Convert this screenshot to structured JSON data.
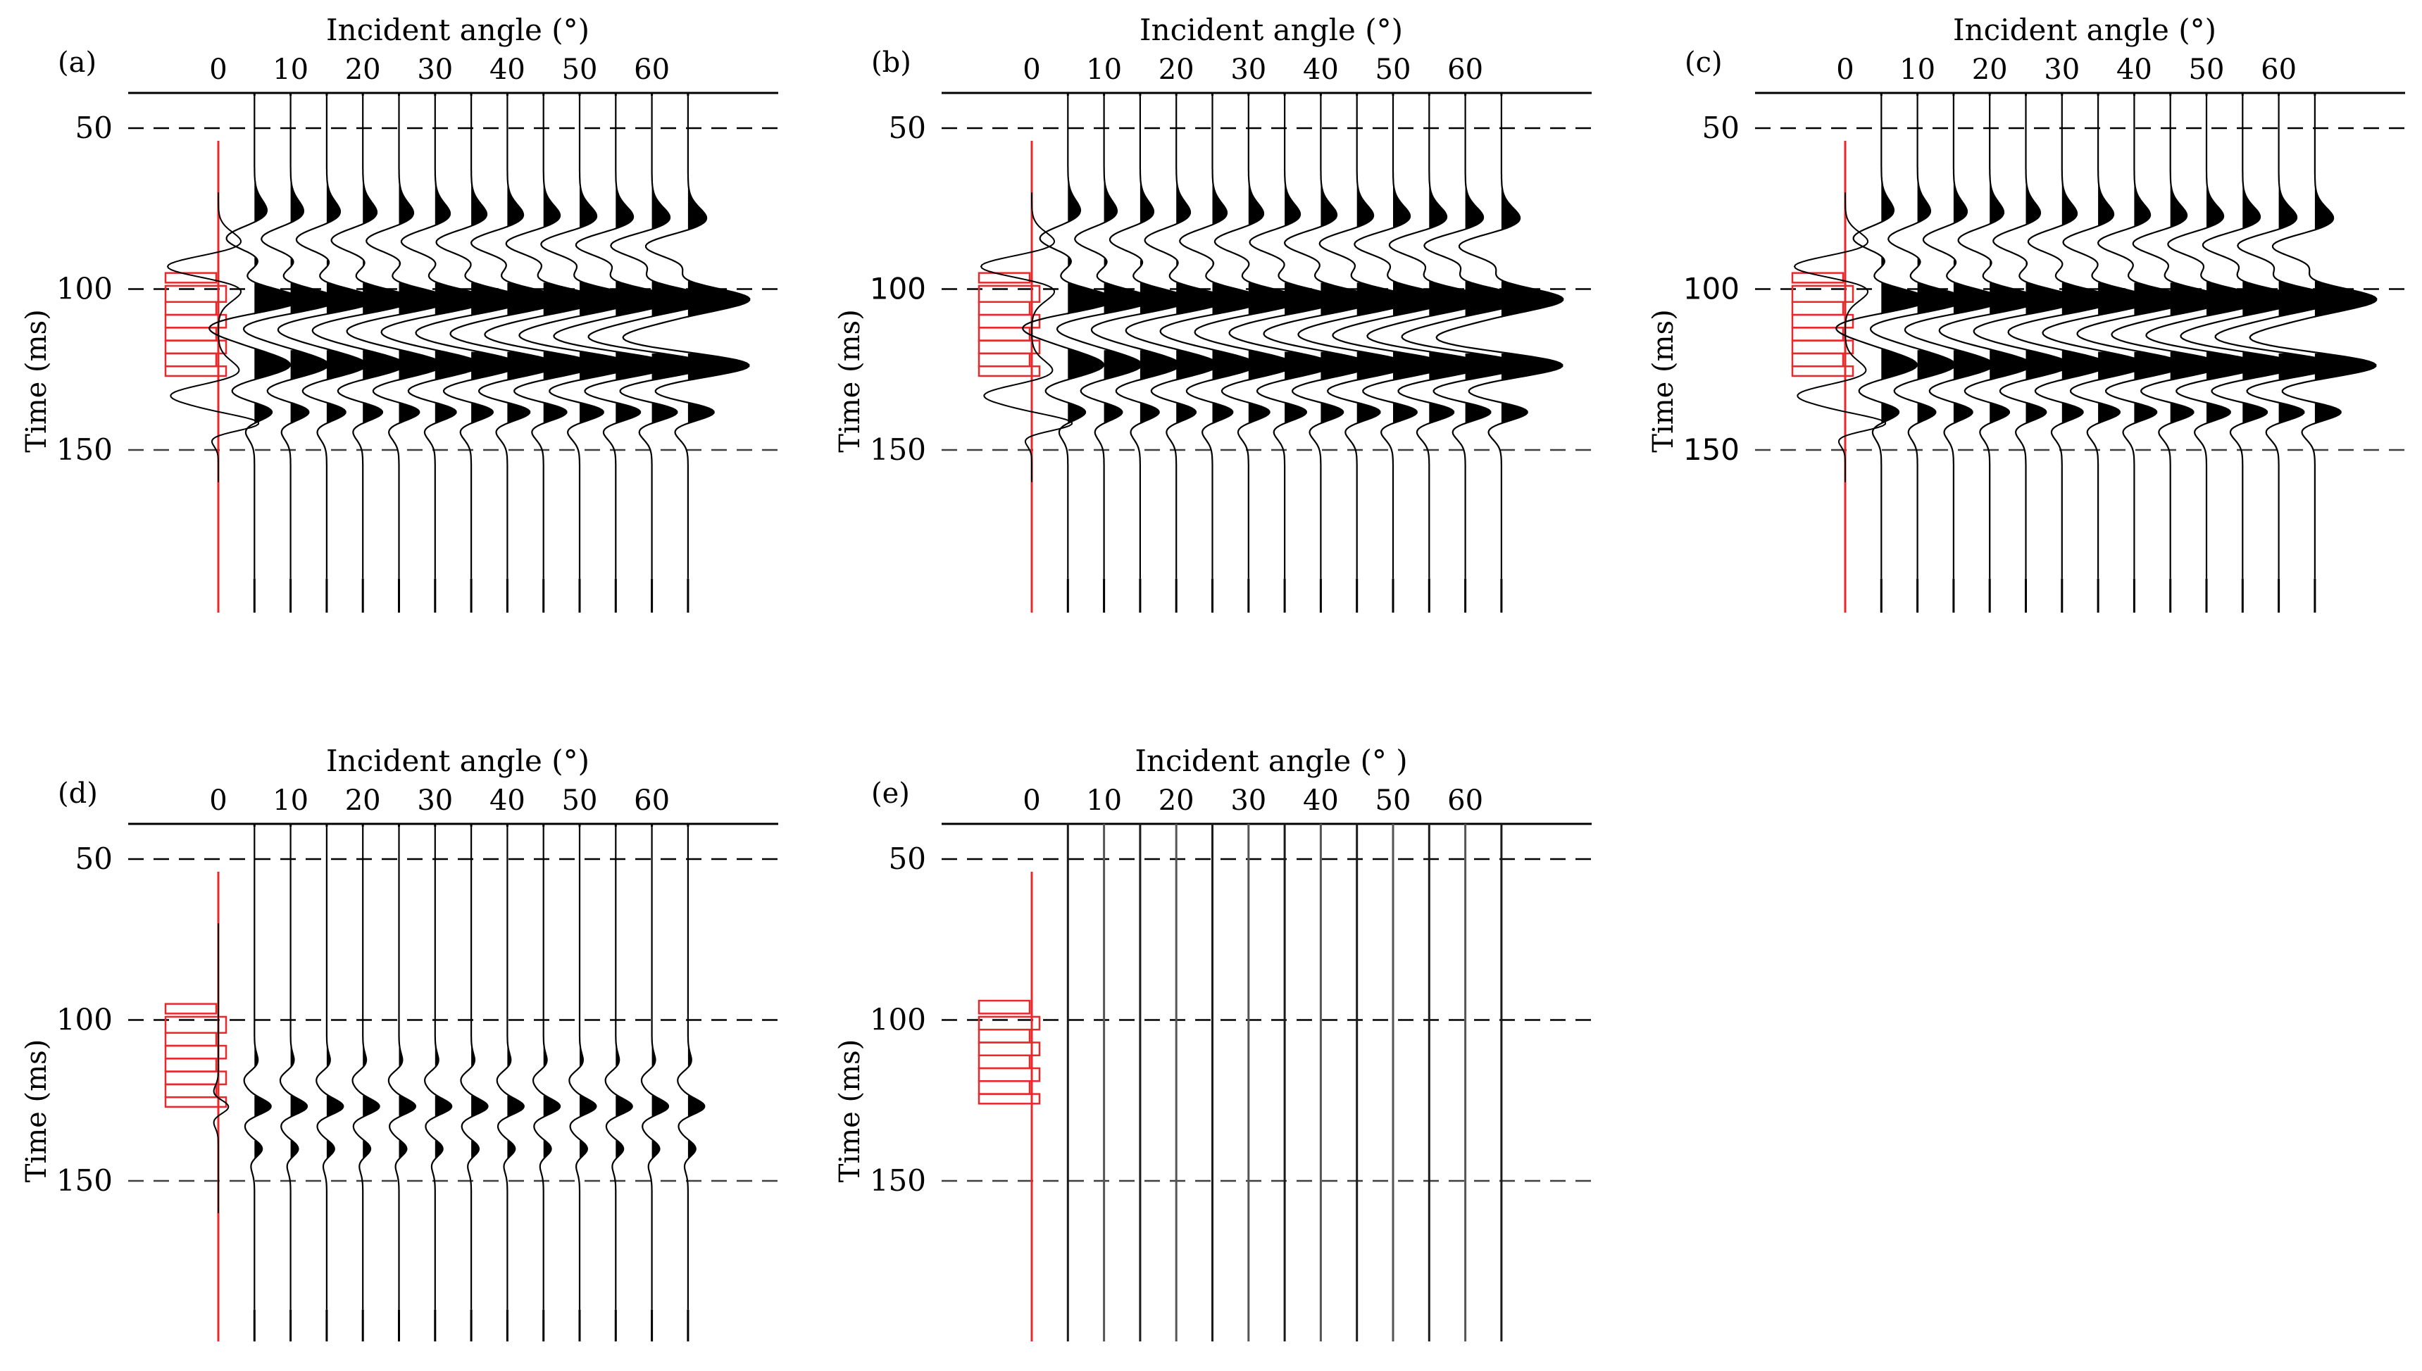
{
  "chart_data": [
    {
      "label": "(a)",
      "type": "seismic_gather",
      "xlabel": "Incident angle (°)",
      "ylabel": "Time (ms)",
      "xticks": [
        "0",
        "10",
        "20",
        "30",
        "40",
        "50",
        "60"
      ],
      "yticks": [
        "50",
        "100",
        "150"
      ],
      "ylim": [
        40,
        190
      ],
      "traces": 14,
      "trace_angle_step": 5,
      "wiggle": "strong",
      "reflectivity": "wide",
      "colors": {
        "reference_trace": "#e8282b",
        "reflectivity": "#e8282b",
        "trace": "#000000",
        "gridline": "#000000"
      }
    },
    {
      "label": "(b)",
      "type": "seismic_gather",
      "xlabel": "Incident angle (°)",
      "ylabel": "Time (ms)",
      "xticks": [
        "0",
        "10",
        "20",
        "30",
        "40",
        "50",
        "60"
      ],
      "yticks": [
        "50",
        "100",
        "150"
      ],
      "ylim": [
        40,
        190
      ],
      "traces": 14,
      "trace_angle_step": 5,
      "wiggle": "strong",
      "reflectivity": "wide",
      "colors": {
        "reference_trace": "#e8282b",
        "reflectivity": "#e8282b",
        "trace": "#000000",
        "gridline": "#000000"
      }
    },
    {
      "label": "(c)",
      "type": "seismic_gather",
      "xlabel": "Incident angle (°)",
      "ylabel": "Time (ms)",
      "xticks": [
        "0",
        "10",
        "20",
        "30",
        "40",
        "50",
        "60"
      ],
      "yticks": [
        "50",
        "100",
        "150"
      ],
      "ylim": [
        40,
        190
      ],
      "traces": 14,
      "trace_angle_step": 5,
      "wiggle": "strong",
      "reflectivity": "wide",
      "colors": {
        "reference_trace": "#e8282b",
        "reflectivity": "#e8282b",
        "trace": "#000000",
        "gridline": "#000000"
      }
    },
    {
      "label": "(d)",
      "type": "seismic_gather",
      "xlabel": "Incident angle (°)",
      "ylabel": "Time (ms)",
      "xticks": [
        "0",
        "10",
        "20",
        "30",
        "40",
        "50",
        "60"
      ],
      "yticks": [
        "50",
        "100",
        "150"
      ],
      "ylim": [
        40,
        190
      ],
      "traces": 14,
      "trace_angle_step": 5,
      "wiggle": "weak",
      "reflectivity": "wide",
      "colors": {
        "reference_trace": "#e8282b",
        "reflectivity": "#e8282b",
        "trace": "#000000",
        "gridline": "#000000"
      }
    },
    {
      "label": "(e)",
      "type": "seismic_gather",
      "xlabel": "Incident angle (°  )",
      "ylabel": "Time (ms)",
      "xticks": [
        "0",
        "10",
        "20",
        "30",
        "40",
        "50",
        "60"
      ],
      "yticks": [
        "50",
        "100",
        "150"
      ],
      "ylim": [
        40,
        190
      ],
      "traces": 14,
      "trace_angle_step": 5,
      "wiggle": "none",
      "reflectivity": "narrow",
      "colors": {
        "reference_trace": "#e8282b",
        "reflectivity": "#e8282b",
        "trace": "#000000",
        "gridline": "#000000"
      }
    }
  ]
}
